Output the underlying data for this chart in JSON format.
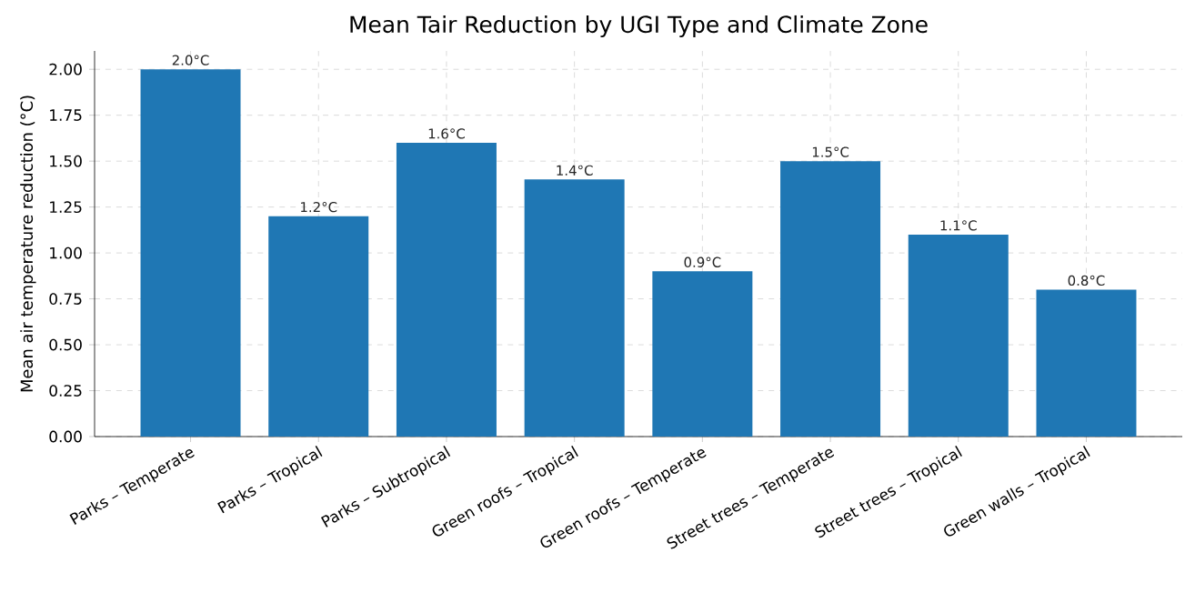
{
  "chart_data": {
    "type": "bar",
    "title": "Mean Tair Reduction by UGI Type and Climate Zone",
    "ylabel": "Mean air temperature reduction (°C)",
    "categories": [
      "Parks – Temperate",
      "Parks – Tropical",
      "Parks – Subtropical",
      "Green roofs – Tropical",
      "Green roofs – Temperate",
      "Street trees – Temperate",
      "Street trees – Tropical",
      "Green walls – Tropical"
    ],
    "values": [
      2.0,
      1.2,
      1.6,
      1.4,
      0.9,
      1.5,
      1.1,
      0.8
    ],
    "value_labels": [
      "2.0°C",
      "1.2°C",
      "1.6°C",
      "1.4°C",
      "0.9°C",
      "1.5°C",
      "1.1°C",
      "0.8°C"
    ],
    "color": "#1f77b4",
    "ylim": [
      0,
      2.1
    ],
    "yticks": [
      {
        "value": 0,
        "label": "0.00"
      },
      {
        "value": 0.25,
        "label": "0.25"
      },
      {
        "value": 0.5,
        "label": "0.50"
      },
      {
        "value": 0.75,
        "label": "0.75"
      },
      {
        "value": 1.0,
        "label": "1.00"
      },
      {
        "value": 1.25,
        "label": "1.25"
      },
      {
        "value": 1.5,
        "label": "1.50"
      },
      {
        "value": 1.75,
        "label": "1.75"
      },
      {
        "value": 2.0,
        "label": "2.00"
      }
    ],
    "grid": true
  }
}
